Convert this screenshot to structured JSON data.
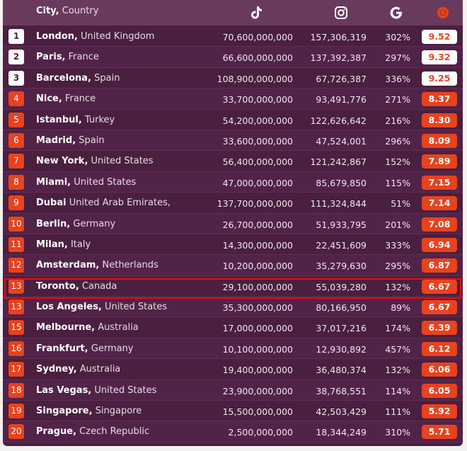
{
  "header": {
    "city_label": "City,",
    "country_label": "Country",
    "icons": [
      "tiktok-icon",
      "instagram-icon",
      "google-icon",
      "score-icon"
    ]
  },
  "colors": {
    "background": "#4a1f3f",
    "header": "#6a3a5c",
    "accent": "#e9421e",
    "highlight": "#e01010"
  },
  "rows": [
    {
      "rank": "1",
      "city": "London,",
      "country": "United Kingdom",
      "tiktok": "70,600,000,000",
      "instagram": "157,306,319",
      "google": "302%",
      "score": "9.52"
    },
    {
      "rank": "2",
      "city": "Paris,",
      "country": "France",
      "tiktok": "66,600,000,000",
      "instagram": "137,392,387",
      "google": "297%",
      "score": "9.32"
    },
    {
      "rank": "3",
      "city": "Barcelona,",
      "country": "Spain",
      "tiktok": "108,900,000,000",
      "instagram": "67,726,387",
      "google": "336%",
      "score": "9.25"
    },
    {
      "rank": "4",
      "city": "Nice,",
      "country": "France",
      "tiktok": "33,700,000,000",
      "instagram": "93,491,776",
      "google": "271%",
      "score": "8.37"
    },
    {
      "rank": "5",
      "city": "Istanbul,",
      "country": "Turkey",
      "tiktok": "54,200,000,000",
      "instagram": "122,626,642",
      "google": "216%",
      "score": "8.30"
    },
    {
      "rank": "6",
      "city": "Madrid,",
      "country": "Spain",
      "tiktok": "33,600,000,000",
      "instagram": "47,524,001",
      "google": "296%",
      "score": "8.09"
    },
    {
      "rank": "7",
      "city": "New York,",
      "country": "United States",
      "tiktok": "56,400,000,000",
      "instagram": "121,242,867",
      "google": "152%",
      "score": "7.89"
    },
    {
      "rank": "8",
      "city": "Miami,",
      "country": "United States",
      "tiktok": "47,000,000,000",
      "instagram": "85,679,850",
      "google": "115%",
      "score": "7.15"
    },
    {
      "rank": "9",
      "city": "Dubai",
      "country": "United Arab Emirates,",
      "tiktok": "137,700,000,000",
      "instagram": "111,324,844",
      "google": "51%",
      "score": "7.14"
    },
    {
      "rank": "10",
      "city": "Berlin,",
      "country": "Germany",
      "tiktok": "26,700,000,000",
      "instagram": "51,933,795",
      "google": "201%",
      "score": "7.08"
    },
    {
      "rank": "11",
      "city": "Milan,",
      "country": "Italy",
      "tiktok": "14,300,000,000",
      "instagram": "22,451,609",
      "google": "333%",
      "score": "6.94"
    },
    {
      "rank": "12",
      "city": "Amsterdam,",
      "country": "Netherlands",
      "tiktok": "10,200,000,000",
      "instagram": "35,279,630",
      "google": "295%",
      "score": "6.87"
    },
    {
      "rank": "13",
      "city": "Toronto,",
      "country": "Canada",
      "tiktok": "29,100,000,000",
      "instagram": "55,039,280",
      "google": "132%",
      "score": "6.67"
    },
    {
      "rank": "13",
      "city": "Los Angeles,",
      "country": "United States",
      "tiktok": "35,300,000,000",
      "instagram": "80,166,950",
      "google": "89%",
      "score": "6.67"
    },
    {
      "rank": "15",
      "city": "Melbourne,",
      "country": "Australia",
      "tiktok": "17,000,000,000",
      "instagram": "37,017,216",
      "google": "174%",
      "score": "6.39"
    },
    {
      "rank": "16",
      "city": "Frankfurt,",
      "country": "Germany",
      "tiktok": "10,100,000,000",
      "instagram": "12,930,892",
      "google": "457%",
      "score": "6.12"
    },
    {
      "rank": "17",
      "city": "Sydney,",
      "country": "Australia",
      "tiktok": "19,400,000,000",
      "instagram": "36,480,374",
      "google": "132%",
      "score": "6.06"
    },
    {
      "rank": "18",
      "city": "Las Vegas,",
      "country": "United States",
      "tiktok": "23,900,000,000",
      "instagram": "38,768,551",
      "google": "114%",
      "score": "6.05"
    },
    {
      "rank": "19",
      "city": "Singapore,",
      "country": "Singapore",
      "tiktok": "15,500,000,000",
      "instagram": "42,503,429",
      "google": "111%",
      "score": "5.92"
    },
    {
      "rank": "20",
      "city": "Prague,",
      "country": "Czech Republic",
      "tiktok": "2,500,000,000",
      "instagram": "18,344,249",
      "google": "310%",
      "score": "5.71"
    }
  ]
}
